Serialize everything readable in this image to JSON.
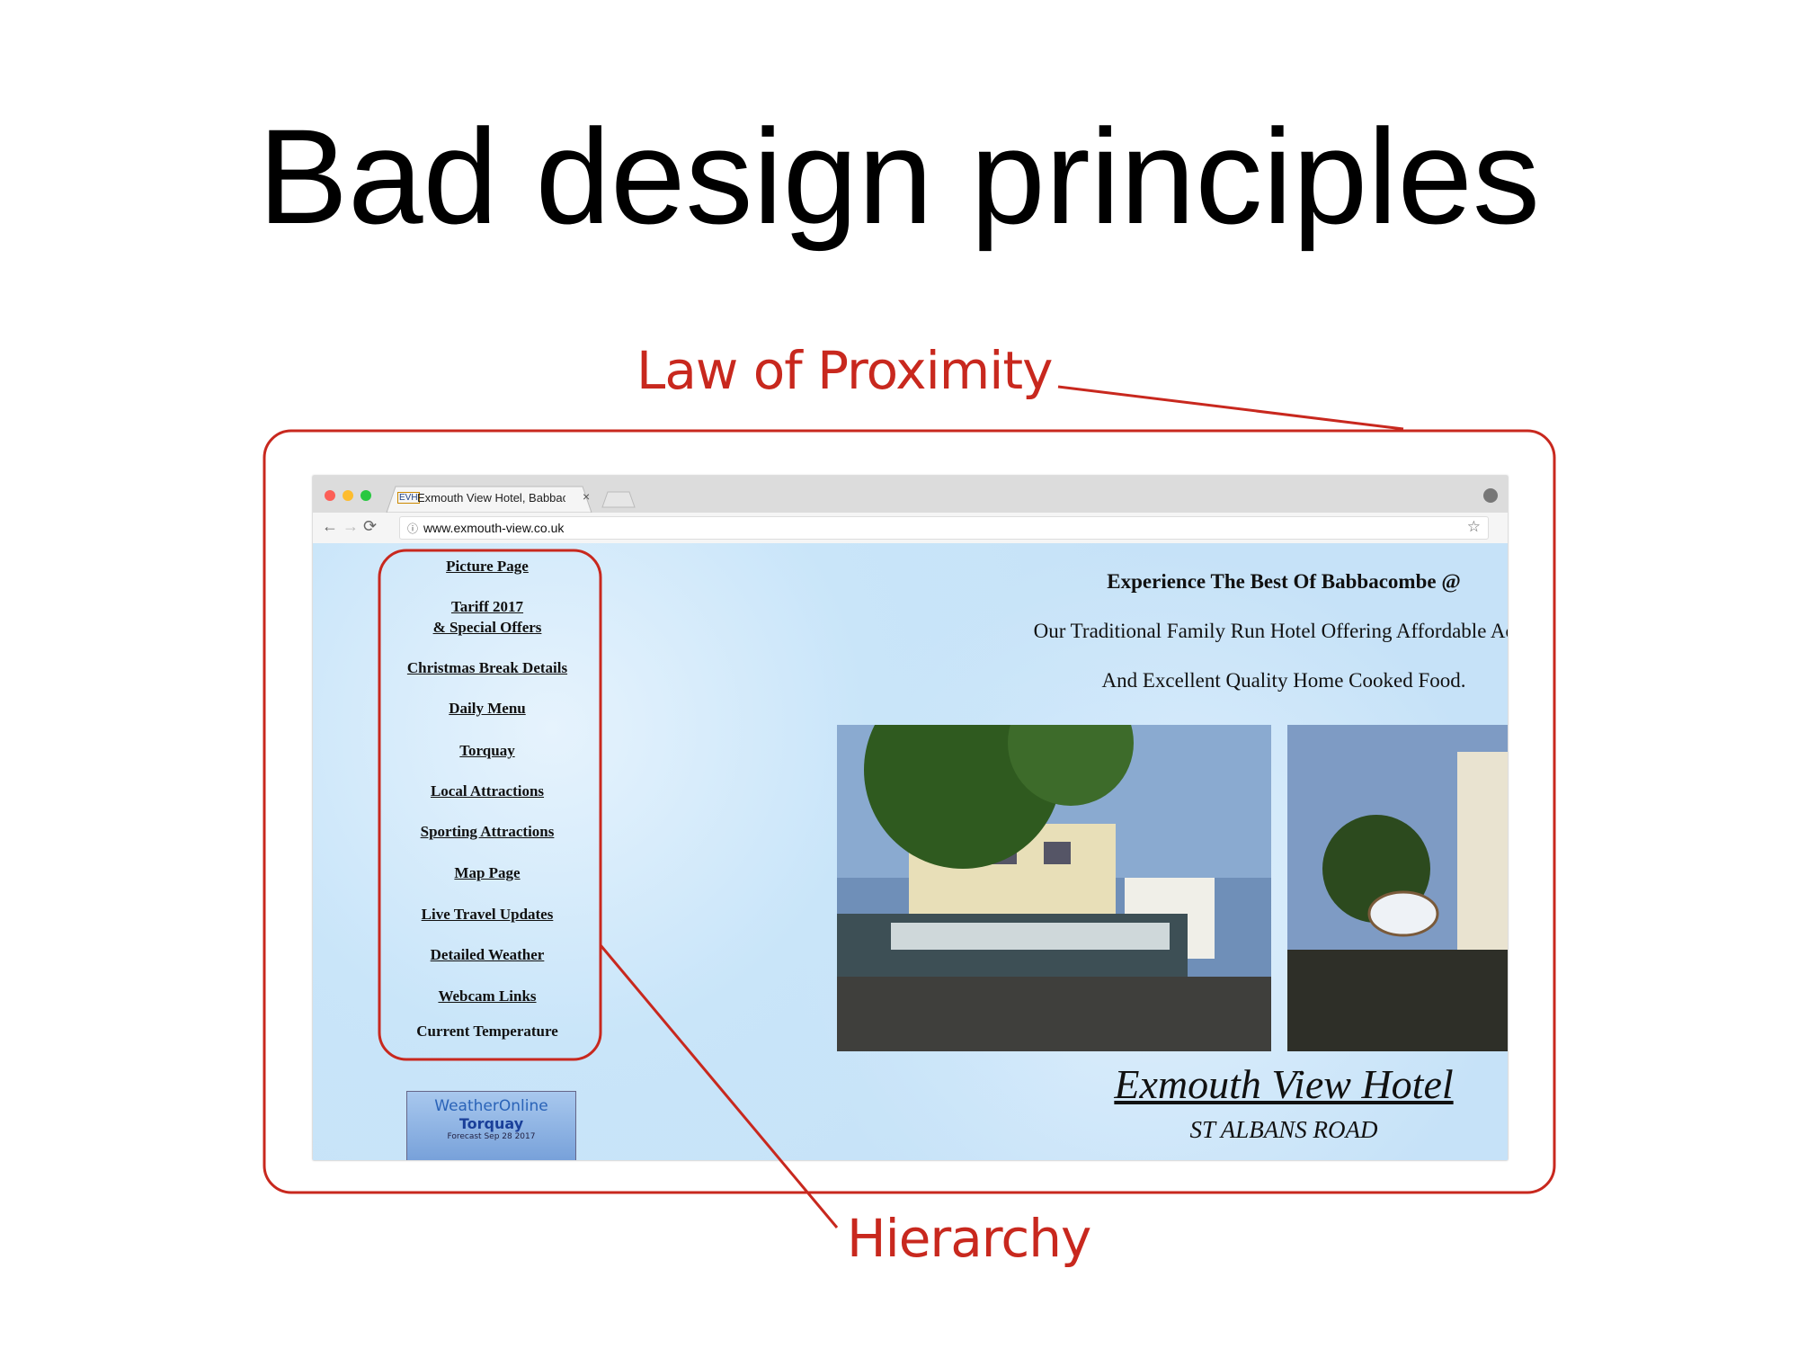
{
  "slide": {
    "title": "Bad design principles"
  },
  "annotations": {
    "proximity": "Law of Proximity",
    "hierarchy": "Hierarchy"
  },
  "browser": {
    "tab_title": "Exmouth View Hotel, Babbaco",
    "tab_icon": "EVH",
    "url": "www.exmouth-view.co.uk"
  },
  "nav": {
    "items": [
      "Picture Page",
      "Tariff 2017",
      "& Special Offers",
      "Christmas Break Details",
      "Daily Menu",
      "Torquay",
      "Local Attractions",
      "Sporting Attractions",
      "Map Page",
      "Live Travel Updates",
      "Detailed Weather",
      "Webcam Links",
      "Current Temperature"
    ]
  },
  "widget": {
    "brand": "WeatherOnline",
    "city": "Torquay",
    "date": "Forecast Sep 28 2017"
  },
  "content": {
    "headline": "Experience The Best Of Babbacombe @",
    "lines": [
      "Our Traditional Family Run Hotel Offering Affordable Acco",
      "And Excellent Quality Home Cooked Food."
    ],
    "hotel_name": "Exmouth View Hotel",
    "address": "ST ALBANS ROAD"
  }
}
